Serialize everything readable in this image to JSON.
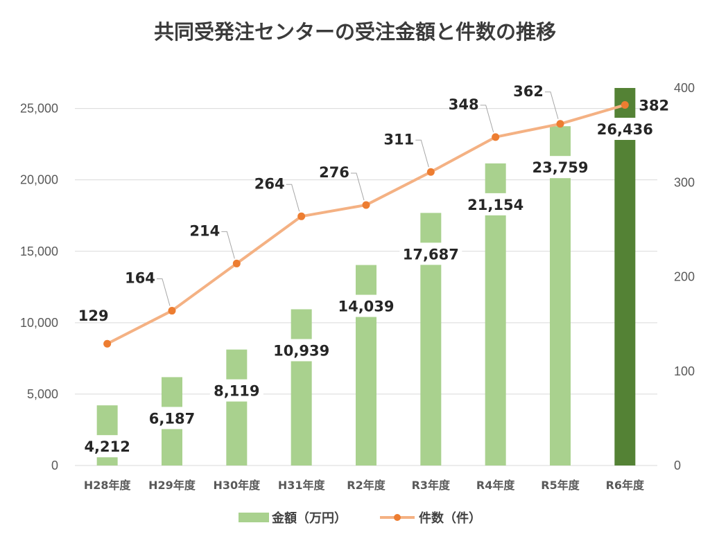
{
  "chart_data": {
    "type": "bar",
    "title": "共同受発注センターの受注金額と件数の推移",
    "categories": [
      "H28年度",
      "H29年度",
      "H30年度",
      "H31年度",
      "R2年度",
      "R3年度",
      "R4年度",
      "R5年度",
      "R6年度"
    ],
    "series": [
      {
        "name": "金額（万円）",
        "type": "bar",
        "axis": "left",
        "values": [
          4212,
          6187,
          8119,
          10939,
          14039,
          17687,
          21154,
          23759,
          26436
        ],
        "labels": [
          "4,212",
          "6,187",
          "8,119",
          "10,939",
          "14,039",
          "17,687",
          "21,154",
          "23,759",
          "26,436"
        ],
        "color": "#a9d18e",
        "highlight_color": "#548235",
        "highlight_index": 8
      },
      {
        "name": "件数（件）",
        "type": "line",
        "axis": "right",
        "values": [
          129,
          164,
          214,
          264,
          276,
          311,
          348,
          362,
          382
        ],
        "labels": [
          "129",
          "164",
          "214",
          "264",
          "276",
          "311",
          "348",
          "362",
          "382"
        ],
        "color": "#f4b183",
        "marker_color": "#ed7d31"
      }
    ],
    "y_left": {
      "min": 0,
      "max": 26436,
      "ticks": [
        "0",
        "5,000",
        "10,000",
        "15,000",
        "20,000",
        "25,000"
      ],
      "tick_values": [
        0,
        5000,
        10000,
        15000,
        20000,
        25000
      ]
    },
    "y_right": {
      "min": 0,
      "max": 400,
      "ticks": [
        "0",
        "100",
        "200",
        "300",
        "400"
      ],
      "tick_values": [
        0,
        100,
        200,
        300,
        400
      ]
    },
    "grid": true,
    "legend_position": "bottom"
  }
}
